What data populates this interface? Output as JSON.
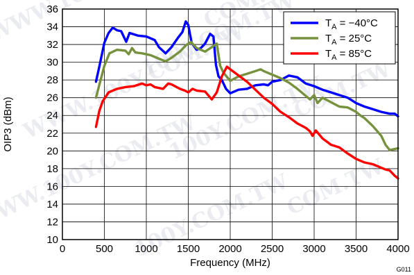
{
  "chart_data": {
    "type": "line",
    "xlabel": "Frequency (MHz)",
    "ylabel": "OIP3 (dBm)",
    "xlim": [
      0,
      4000
    ],
    "ylim": [
      10,
      36
    ],
    "xticks": [
      0,
      500,
      1000,
      1500,
      2000,
      2500,
      3000,
      3500,
      4000
    ],
    "yticks": [
      10,
      12,
      14,
      16,
      18,
      20,
      22,
      24,
      26,
      28,
      30,
      32,
      34,
      36
    ],
    "grid": true,
    "legend_position": "top-right",
    "series": [
      {
        "name": "TA = −40°C",
        "legend": {
          "main": "T",
          "sub": "A",
          "rest": " = −40°C"
        },
        "color": "#0000ff",
        "points": [
          [
            400,
            27.8
          ],
          [
            440,
            29.5
          ],
          [
            500,
            32.2
          ],
          [
            550,
            33.3
          ],
          [
            600,
            33.9
          ],
          [
            650,
            33.6
          ],
          [
            700,
            33.5
          ],
          [
            760,
            32.3
          ],
          [
            800,
            33.3
          ],
          [
            900,
            33.0
          ],
          [
            1000,
            32.9
          ],
          [
            1100,
            32.5
          ],
          [
            1150,
            31.7
          ],
          [
            1230,
            31.0
          ],
          [
            1300,
            31.7
          ],
          [
            1380,
            32.8
          ],
          [
            1430,
            33.4
          ],
          [
            1470,
            34.6
          ],
          [
            1500,
            34.2
          ],
          [
            1540,
            32.2
          ],
          [
            1600,
            31.4
          ],
          [
            1650,
            31.6
          ],
          [
            1700,
            32.1
          ],
          [
            1760,
            33.2
          ],
          [
            1800,
            32.9
          ],
          [
            1830,
            29.7
          ],
          [
            1860,
            28.4
          ],
          [
            1900,
            28.0
          ],
          [
            1950,
            27.0
          ],
          [
            2000,
            26.5
          ],
          [
            2100,
            26.9
          ],
          [
            2200,
            27.0
          ],
          [
            2300,
            27.4
          ],
          [
            2400,
            27.5
          ],
          [
            2450,
            27.4
          ],
          [
            2500,
            27.8
          ],
          [
            2600,
            28.0
          ],
          [
            2700,
            28.5
          ],
          [
            2800,
            28.3
          ],
          [
            2900,
            27.6
          ],
          [
            3000,
            27.3
          ],
          [
            3100,
            26.9
          ],
          [
            3200,
            26.6
          ],
          [
            3300,
            26.3
          ],
          [
            3400,
            26.0
          ],
          [
            3500,
            25.4
          ],
          [
            3600,
            25.0
          ],
          [
            3700,
            24.7
          ],
          [
            3800,
            24.4
          ],
          [
            3900,
            24.2
          ],
          [
            3960,
            24.2
          ],
          [
            4000,
            23.9
          ]
        ]
      },
      {
        "name": "TA = 25°C",
        "legend": {
          "main": "T",
          "sub": "A",
          "rest": " = 25°C"
        },
        "color": "#76923c",
        "points": [
          [
            400,
            26.0
          ],
          [
            450,
            27.8
          ],
          [
            500,
            29.6
          ],
          [
            560,
            31.0
          ],
          [
            650,
            31.4
          ],
          [
            750,
            31.3
          ],
          [
            790,
            30.9
          ],
          [
            830,
            31.6
          ],
          [
            870,
            31.1
          ],
          [
            950,
            31.0
          ],
          [
            1050,
            30.8
          ],
          [
            1150,
            30.4
          ],
          [
            1230,
            30.1
          ],
          [
            1300,
            30.5
          ],
          [
            1400,
            31.2
          ],
          [
            1470,
            31.9
          ],
          [
            1530,
            32.3
          ],
          [
            1600,
            31.6
          ],
          [
            1700,
            31.2
          ],
          [
            1780,
            31.7
          ],
          [
            1840,
            32.1
          ],
          [
            1880,
            29.6
          ],
          [
            1920,
            28.8
          ],
          [
            2000,
            27.9
          ],
          [
            2100,
            28.4
          ],
          [
            2200,
            28.7
          ],
          [
            2300,
            29.0
          ],
          [
            2360,
            29.2
          ],
          [
            2400,
            29.0
          ],
          [
            2500,
            28.6
          ],
          [
            2600,
            28.2
          ],
          [
            2700,
            27.7
          ],
          [
            2800,
            27.0
          ],
          [
            2900,
            26.2
          ],
          [
            2950,
            25.8
          ],
          [
            3000,
            26.3
          ],
          [
            3040,
            25.4
          ],
          [
            3100,
            26.0
          ],
          [
            3200,
            25.5
          ],
          [
            3300,
            25.0
          ],
          [
            3400,
            24.9
          ],
          [
            3500,
            24.4
          ],
          [
            3550,
            24.0
          ],
          [
            3600,
            23.7
          ],
          [
            3700,
            22.8
          ],
          [
            3800,
            21.7
          ],
          [
            3850,
            20.7
          ],
          [
            3900,
            20.1
          ],
          [
            3950,
            20.2
          ],
          [
            4000,
            20.3
          ]
        ]
      },
      {
        "name": "TA = 85°C",
        "legend": {
          "main": "T",
          "sub": "A",
          "rest": " = 85°C"
        },
        "color": "#ff0000",
        "points": [
          [
            400,
            22.7
          ],
          [
            440,
            24.5
          ],
          [
            480,
            25.6
          ],
          [
            550,
            26.6
          ],
          [
            650,
            27.0
          ],
          [
            750,
            27.2
          ],
          [
            850,
            27.3
          ],
          [
            950,
            27.6
          ],
          [
            1000,
            27.4
          ],
          [
            1050,
            27.5
          ],
          [
            1100,
            27.2
          ],
          [
            1200,
            27.0
          ],
          [
            1260,
            27.6
          ],
          [
            1300,
            27.5
          ],
          [
            1400,
            27.0
          ],
          [
            1460,
            26.8
          ],
          [
            1500,
            26.6
          ],
          [
            1550,
            27.0
          ],
          [
            1600,
            26.8
          ],
          [
            1700,
            26.7
          ],
          [
            1780,
            25.8
          ],
          [
            1840,
            26.6
          ],
          [
            1900,
            28.4
          ],
          [
            1960,
            29.5
          ],
          [
            2000,
            29.2
          ],
          [
            2100,
            28.5
          ],
          [
            2200,
            27.8
          ],
          [
            2300,
            26.9
          ],
          [
            2400,
            26.0
          ],
          [
            2500,
            25.3
          ],
          [
            2600,
            24.4
          ],
          [
            2700,
            23.8
          ],
          [
            2800,
            23.1
          ],
          [
            2900,
            22.6
          ],
          [
            2950,
            22.2
          ],
          [
            2980,
            21.7
          ],
          [
            3020,
            22.3
          ],
          [
            3100,
            21.4
          ],
          [
            3200,
            20.7
          ],
          [
            3300,
            20.4
          ],
          [
            3400,
            19.7
          ],
          [
            3500,
            19.1
          ],
          [
            3600,
            18.7
          ],
          [
            3700,
            18.5
          ],
          [
            3800,
            18.1
          ],
          [
            3850,
            17.9
          ],
          [
            3900,
            17.8
          ],
          [
            3960,
            17.2
          ],
          [
            4000,
            16.9
          ]
        ]
      }
    ],
    "figure_id": "G011"
  },
  "watermarks": [
    "WWW.100Y.COM.TW",
    "100Y.COM.TW",
    "COM.TW"
  ]
}
